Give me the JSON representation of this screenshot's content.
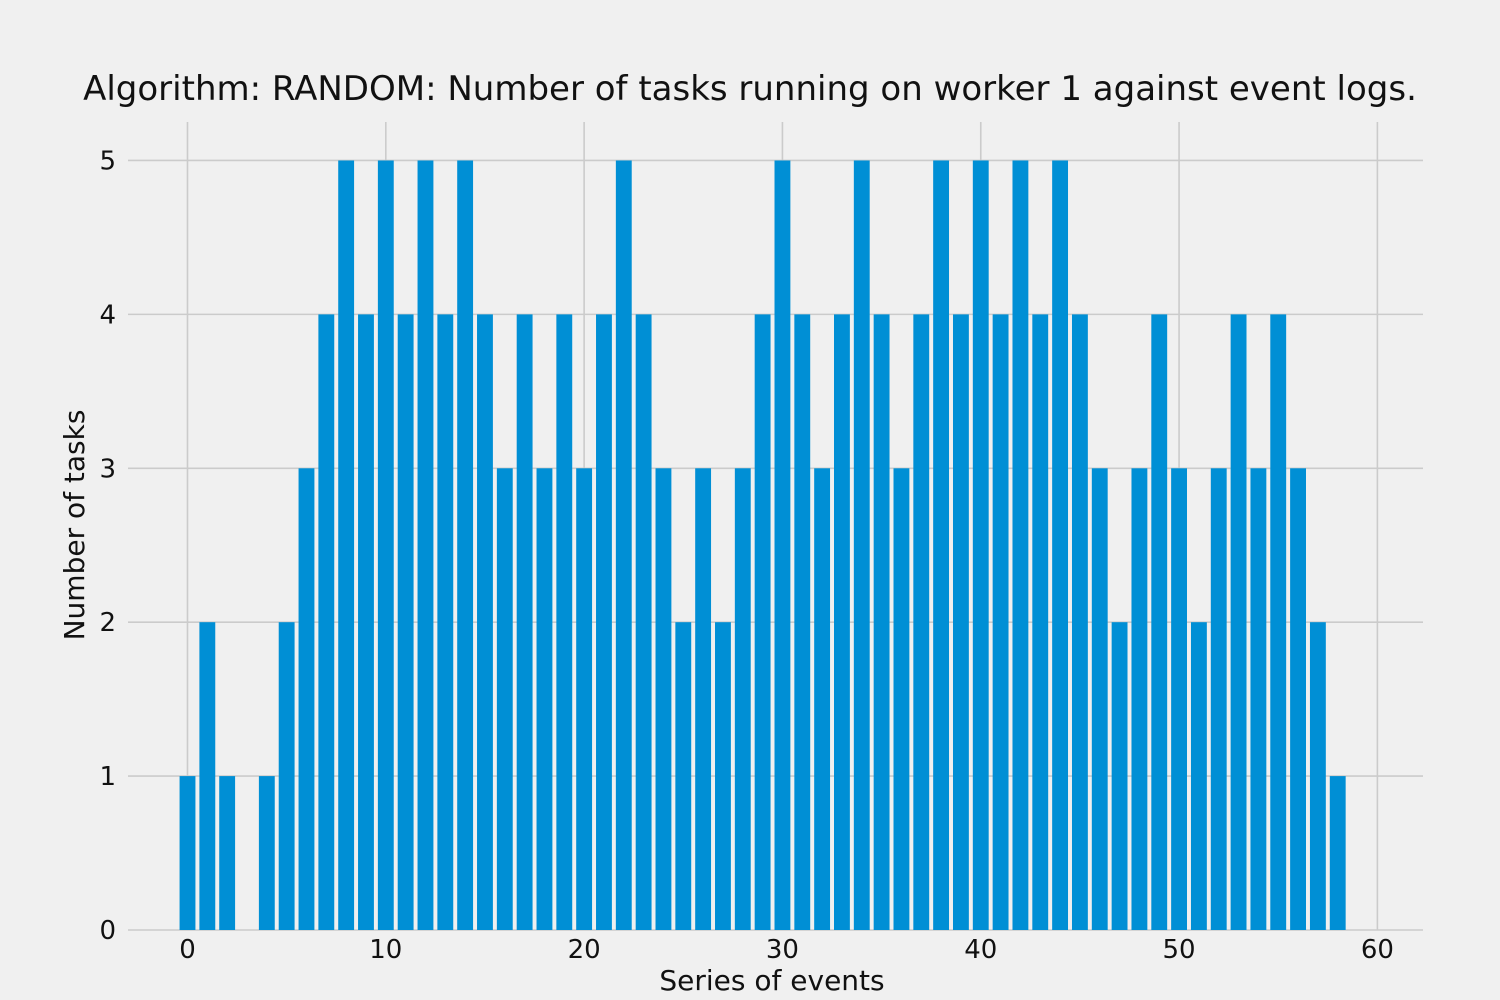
{
  "chart_data": {
    "type": "bar",
    "title": "Algorithm: RANDOM: Number of tasks running on worker 1 against event logs.",
    "xlabel": "Series of events",
    "ylabel": "Number of tasks",
    "x": [
      0,
      1,
      2,
      3,
      4,
      5,
      6,
      7,
      8,
      9,
      10,
      11,
      12,
      13,
      14,
      15,
      16,
      17,
      18,
      19,
      20,
      21,
      22,
      23,
      24,
      25,
      26,
      27,
      28,
      29,
      30,
      31,
      32,
      33,
      34,
      35,
      36,
      37,
      38,
      39,
      40,
      41,
      42,
      43,
      44,
      45,
      46,
      47,
      48,
      49,
      50,
      51,
      52,
      53,
      54,
      55,
      56,
      57,
      58
    ],
    "values": [
      1,
      2,
      1,
      0,
      1,
      2,
      3,
      4,
      5,
      4,
      5,
      4,
      5,
      4,
      5,
      4,
      3,
      4,
      3,
      4,
      3,
      4,
      5,
      4,
      3,
      2,
      3,
      2,
      3,
      4,
      5,
      4,
      3,
      4,
      5,
      4,
      3,
      4,
      5,
      4,
      5,
      4,
      5,
      4,
      5,
      4,
      3,
      2,
      3,
      4,
      3,
      2,
      3,
      4,
      3,
      4,
      3,
      2,
      1
    ],
    "xticks": [
      0,
      10,
      20,
      30,
      40,
      50,
      60
    ],
    "yticks": [
      0,
      1,
      2,
      3,
      4,
      5
    ],
    "xlim": [
      -3,
      62.3
    ],
    "ylim": [
      0,
      5.25
    ],
    "grid": true,
    "bar_color": "#008fd5",
    "background_color": "#f0f0f0",
    "grid_color": "#cbcbcb"
  }
}
